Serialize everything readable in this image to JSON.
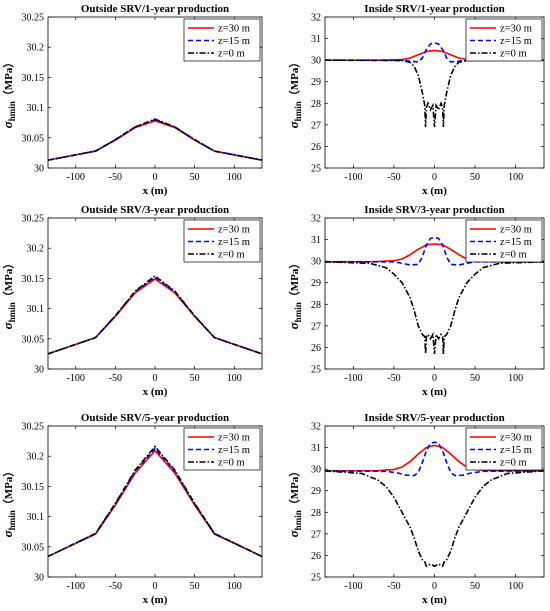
{
  "chart_data": [
    {
      "type": "line",
      "title": "Outside SRV/1-year production",
      "xlabel": "x (m)",
      "ylabel_main": "σ",
      "ylabel_sub": "hmin",
      "ylabel_unit": "（MPa）",
      "xlim": [
        -135,
        135
      ],
      "ylim": [
        30.0,
        30.25
      ],
      "xticks": [
        -100,
        -50,
        0,
        50,
        100
      ],
      "yticks": [
        30,
        30.05,
        30.1,
        30.15,
        30.2,
        30.25
      ],
      "yticklabels": [
        "30",
        "30.05",
        "30.1",
        "30.15",
        "30.2",
        "30.25"
      ],
      "legend_position": "top-right",
      "series": [
        {
          "name": "z=30 m",
          "color": "#ff0000",
          "dash": "solid",
          "x": [
            -135,
            -75,
            -50,
            -25,
            0,
            25,
            50,
            75,
            135
          ],
          "y": [
            30.013,
            30.028,
            30.046,
            30.067,
            30.078,
            30.067,
            30.046,
            30.028,
            30.013
          ]
        },
        {
          "name": "z=15 m",
          "color": "#0000ff",
          "dash": "dashed",
          "x": [
            -135,
            -75,
            -50,
            -25,
            0,
            25,
            50,
            75,
            135
          ],
          "y": [
            30.013,
            30.028,
            30.047,
            30.068,
            30.08,
            30.068,
            30.047,
            30.028,
            30.013
          ]
        },
        {
          "name": "z=0 m",
          "color": "#000000",
          "dash": "dashdot",
          "x": [
            -135,
            -75,
            -50,
            -25,
            0,
            25,
            50,
            75,
            135
          ],
          "y": [
            30.013,
            30.028,
            30.047,
            30.068,
            30.081,
            30.068,
            30.047,
            30.028,
            30.013
          ]
        }
      ]
    },
    {
      "type": "line",
      "title": "Inside SRV/1-year production",
      "xlabel": "x (m)",
      "ylabel_main": "σ",
      "ylabel_sub": "hmin",
      "ylabel_unit": "（MPa）",
      "xlim": [
        -135,
        135
      ],
      "ylim": [
        25,
        32
      ],
      "xticks": [
        -100,
        -50,
        0,
        50,
        100
      ],
      "yticks": [
        25,
        26,
        27,
        28,
        29,
        30,
        31,
        32
      ],
      "yticklabels": [
        "25",
        "26",
        "27",
        "28",
        "29",
        "30",
        "31",
        "32"
      ],
      "legend_position": "top-right",
      "series": [
        {
          "name": "z=30 m",
          "color": "#ff0000",
          "dash": "solid",
          "x": [
            -135,
            -60,
            -40,
            -30,
            -20,
            -10,
            0,
            10,
            20,
            30,
            40,
            60,
            135
          ],
          "y": [
            30.0,
            30.0,
            30.03,
            30.1,
            30.25,
            30.4,
            30.45,
            30.4,
            30.25,
            30.1,
            30.03,
            30.0,
            30.0
          ]
        },
        {
          "name": "z=15 m",
          "color": "#0000ff",
          "dash": "dashed",
          "x": [
            -135,
            -40,
            -30,
            -20,
            -15,
            -10,
            -5,
            0,
            5,
            10,
            15,
            20,
            30,
            40,
            135
          ],
          "y": [
            30.0,
            30.0,
            29.95,
            29.92,
            30.1,
            30.5,
            30.75,
            30.8,
            30.75,
            30.5,
            30.1,
            29.92,
            29.95,
            30.0,
            30.0
          ]
        },
        {
          "name": "z=0 m",
          "color": "#000000",
          "dash": "dashdot",
          "x": [
            -135,
            -40,
            -30,
            -25,
            -20,
            -15,
            -12,
            -11,
            -10,
            -8,
            -5,
            -2,
            0,
            2,
            5,
            8,
            10,
            11,
            12,
            15,
            20,
            25,
            30,
            40,
            135
          ],
          "y": [
            30.0,
            29.98,
            29.9,
            29.7,
            29.3,
            28.5,
            27.9,
            26.9,
            27.8,
            28.0,
            27.7,
            27.9,
            26.9,
            27.9,
            27.7,
            28.0,
            27.8,
            26.9,
            27.9,
            28.5,
            29.3,
            29.7,
            29.9,
            29.98,
            30.0
          ]
        }
      ]
    },
    {
      "type": "line",
      "title": "Outside SRV/3-year production",
      "xlabel": "x (m)",
      "ylabel_main": "σ",
      "ylabel_sub": "hmin",
      "ylabel_unit": "（MPa）",
      "xlim": [
        -135,
        135
      ],
      "ylim": [
        30.0,
        30.25
      ],
      "xticks": [
        -100,
        -50,
        0,
        50,
        100
      ],
      "yticks": [
        30,
        30.05,
        30.1,
        30.15,
        30.2,
        30.25
      ],
      "yticklabels": [
        "30",
        "30.05",
        "30.1",
        "30.15",
        "30.2",
        "30.25"
      ],
      "legend_position": "top-right",
      "series": [
        {
          "name": "z=30 m",
          "color": "#ff0000",
          "dash": "solid",
          "x": [
            -135,
            -75,
            -50,
            -25,
            0,
            25,
            50,
            75,
            135
          ],
          "y": [
            30.025,
            30.052,
            30.087,
            30.126,
            30.149,
            30.126,
            30.087,
            30.052,
            30.025
          ]
        },
        {
          "name": "z=15 m",
          "color": "#0000ff",
          "dash": "dashed",
          "x": [
            -135,
            -75,
            -50,
            -25,
            0,
            25,
            50,
            75,
            135
          ],
          "y": [
            30.025,
            30.052,
            30.088,
            30.128,
            30.152,
            30.128,
            30.088,
            30.052,
            30.025
          ]
        },
        {
          "name": "z=0 m",
          "color": "#000000",
          "dash": "dashdot",
          "x": [
            -135,
            -75,
            -50,
            -25,
            0,
            25,
            50,
            75,
            135
          ],
          "y": [
            30.025,
            30.052,
            30.088,
            30.129,
            30.154,
            30.129,
            30.088,
            30.052,
            30.025
          ]
        }
      ]
    },
    {
      "type": "line",
      "title": "Inside SRV/3-year production",
      "xlabel": "x (m)",
      "ylabel_main": "σ",
      "ylabel_sub": "hmin",
      "ylabel_unit": "（MPa）",
      "xlim": [
        -135,
        135
      ],
      "ylim": [
        25,
        32
      ],
      "xticks": [
        -100,
        -50,
        0,
        50,
        100
      ],
      "yticks": [
        25,
        26,
        27,
        28,
        29,
        30,
        31,
        32
      ],
      "yticklabels": [
        "25",
        "26",
        "27",
        "28",
        "29",
        "30",
        "31",
        "32"
      ],
      "legend_position": "top-right",
      "series": [
        {
          "name": "z=30 m",
          "color": "#ff0000",
          "dash": "solid",
          "x": [
            -135,
            -70,
            -50,
            -40,
            -30,
            -20,
            -10,
            0,
            10,
            20,
            30,
            40,
            50,
            70,
            135
          ],
          "y": [
            29.97,
            29.98,
            30.02,
            30.1,
            30.3,
            30.55,
            30.75,
            30.8,
            30.75,
            30.55,
            30.3,
            30.1,
            30.02,
            29.98,
            29.97
          ]
        },
        {
          "name": "z=15 m",
          "color": "#0000ff",
          "dash": "dashed",
          "x": [
            -135,
            -50,
            -40,
            -30,
            -20,
            -15,
            -10,
            -5,
            0,
            5,
            10,
            15,
            20,
            30,
            40,
            50,
            135
          ],
          "y": [
            29.97,
            29.97,
            29.9,
            29.82,
            29.85,
            30.2,
            30.75,
            31.05,
            31.1,
            31.05,
            30.75,
            30.2,
            29.85,
            29.82,
            29.9,
            29.97,
            29.97
          ]
        },
        {
          "name": "z=0 m",
          "color": "#000000",
          "dash": "dashdot",
          "x": [
            -135,
            -80,
            -60,
            -50,
            -40,
            -30,
            -25,
            -20,
            -15,
            -12,
            -11,
            -10,
            -8,
            -5,
            -2,
            0,
            2,
            5,
            8,
            10,
            11,
            12,
            15,
            20,
            25,
            30,
            40,
            50,
            60,
            80,
            135
          ],
          "y": [
            29.97,
            29.9,
            29.7,
            29.4,
            29.0,
            28.3,
            27.7,
            27.0,
            26.6,
            26.5,
            25.7,
            26.5,
            26.6,
            26.4,
            26.6,
            25.7,
            26.6,
            26.4,
            26.6,
            26.5,
            25.7,
            26.5,
            26.6,
            27.0,
            27.7,
            28.3,
            29.0,
            29.4,
            29.7,
            29.9,
            29.97
          ]
        }
      ]
    },
    {
      "type": "line",
      "title": "Outside SRV/5-year production",
      "xlabel": "x (m)",
      "ylabel_main": "σ",
      "ylabel_sub": "hmin",
      "ylabel_unit": "（MPa）",
      "xlim": [
        -135,
        135
      ],
      "ylim": [
        30.0,
        30.25
      ],
      "xticks": [
        -100,
        -50,
        0,
        50,
        100
      ],
      "yticks": [
        30,
        30.05,
        30.1,
        30.15,
        30.2,
        30.25
      ],
      "yticklabels": [
        "30",
        "30.05",
        "30.1",
        "30.15",
        "30.2",
        "30.25"
      ],
      "legend_position": "top-right",
      "series": [
        {
          "name": "z=30 m",
          "color": "#ff0000",
          "dash": "solid",
          "x": [
            -135,
            -75,
            -50,
            -25,
            0,
            25,
            50,
            75,
            135
          ],
          "y": [
            30.034,
            30.071,
            30.119,
            30.172,
            30.209,
            30.172,
            30.119,
            30.071,
            30.034
          ]
        },
        {
          "name": "z=15 m",
          "color": "#0000ff",
          "dash": "dashed",
          "x": [
            -135,
            -75,
            -50,
            -25,
            0,
            25,
            50,
            75,
            135
          ],
          "y": [
            30.034,
            30.072,
            30.121,
            30.175,
            30.213,
            30.175,
            30.121,
            30.072,
            30.034
          ]
        },
        {
          "name": "z=0 m",
          "color": "#000000",
          "dash": "dashdot",
          "x": [
            -135,
            -75,
            -50,
            -25,
            0,
            25,
            50,
            75,
            135
          ],
          "y": [
            30.034,
            30.072,
            30.122,
            30.177,
            30.216,
            30.177,
            30.122,
            30.072,
            30.034
          ]
        }
      ]
    },
    {
      "type": "line",
      "title": "Inside SRV/5-year production",
      "xlabel": "x (m)",
      "ylabel_main": "σ",
      "ylabel_sub": "hmin",
      "ylabel_unit": "（MPa）",
      "xlim": [
        -135,
        135
      ],
      "ylim": [
        25,
        32
      ],
      "xticks": [
        -100,
        -50,
        0,
        50,
        100
      ],
      "yticks": [
        25,
        26,
        27,
        28,
        29,
        30,
        31,
        32
      ],
      "yticklabels": [
        "25",
        "26",
        "27",
        "28",
        "29",
        "30",
        "31",
        "32"
      ],
      "legend_position": "top-right",
      "series": [
        {
          "name": "z=30 m",
          "color": "#ff0000",
          "dash": "solid",
          "x": [
            -135,
            -70,
            -50,
            -40,
            -30,
            -20,
            -10,
            0,
            10,
            20,
            30,
            40,
            50,
            70,
            135
          ],
          "y": [
            29.92,
            29.93,
            29.98,
            30.1,
            30.35,
            30.7,
            31.0,
            31.1,
            31.0,
            30.7,
            30.35,
            30.1,
            29.98,
            29.93,
            29.92
          ]
        },
        {
          "name": "z=15 m",
          "color": "#0000ff",
          "dash": "dashed",
          "x": [
            -135,
            -60,
            -45,
            -35,
            -25,
            -20,
            -15,
            -10,
            -5,
            0,
            5,
            10,
            15,
            20,
            25,
            35,
            45,
            60,
            135
          ],
          "y": [
            29.92,
            29.9,
            29.82,
            29.72,
            29.7,
            29.85,
            30.3,
            30.85,
            31.2,
            31.25,
            31.2,
            30.85,
            30.3,
            29.85,
            29.7,
            29.72,
            29.82,
            29.9,
            29.92
          ]
        },
        {
          "name": "z=0 m",
          "color": "#000000",
          "dash": "dashdot",
          "x": [
            -135,
            -90,
            -70,
            -60,
            -50,
            -40,
            -30,
            -25,
            -20,
            -15,
            -12,
            -10,
            -5,
            0,
            5,
            10,
            12,
            15,
            20,
            25,
            30,
            40,
            50,
            60,
            70,
            90,
            135
          ],
          "y": [
            29.92,
            29.8,
            29.5,
            29.2,
            28.7,
            28.0,
            27.3,
            26.8,
            26.2,
            25.8,
            25.7,
            25.5,
            25.6,
            25.5,
            25.6,
            25.5,
            25.7,
            25.8,
            26.2,
            26.8,
            27.3,
            28.0,
            28.7,
            29.2,
            29.5,
            29.8,
            29.92
          ]
        }
      ]
    }
  ]
}
